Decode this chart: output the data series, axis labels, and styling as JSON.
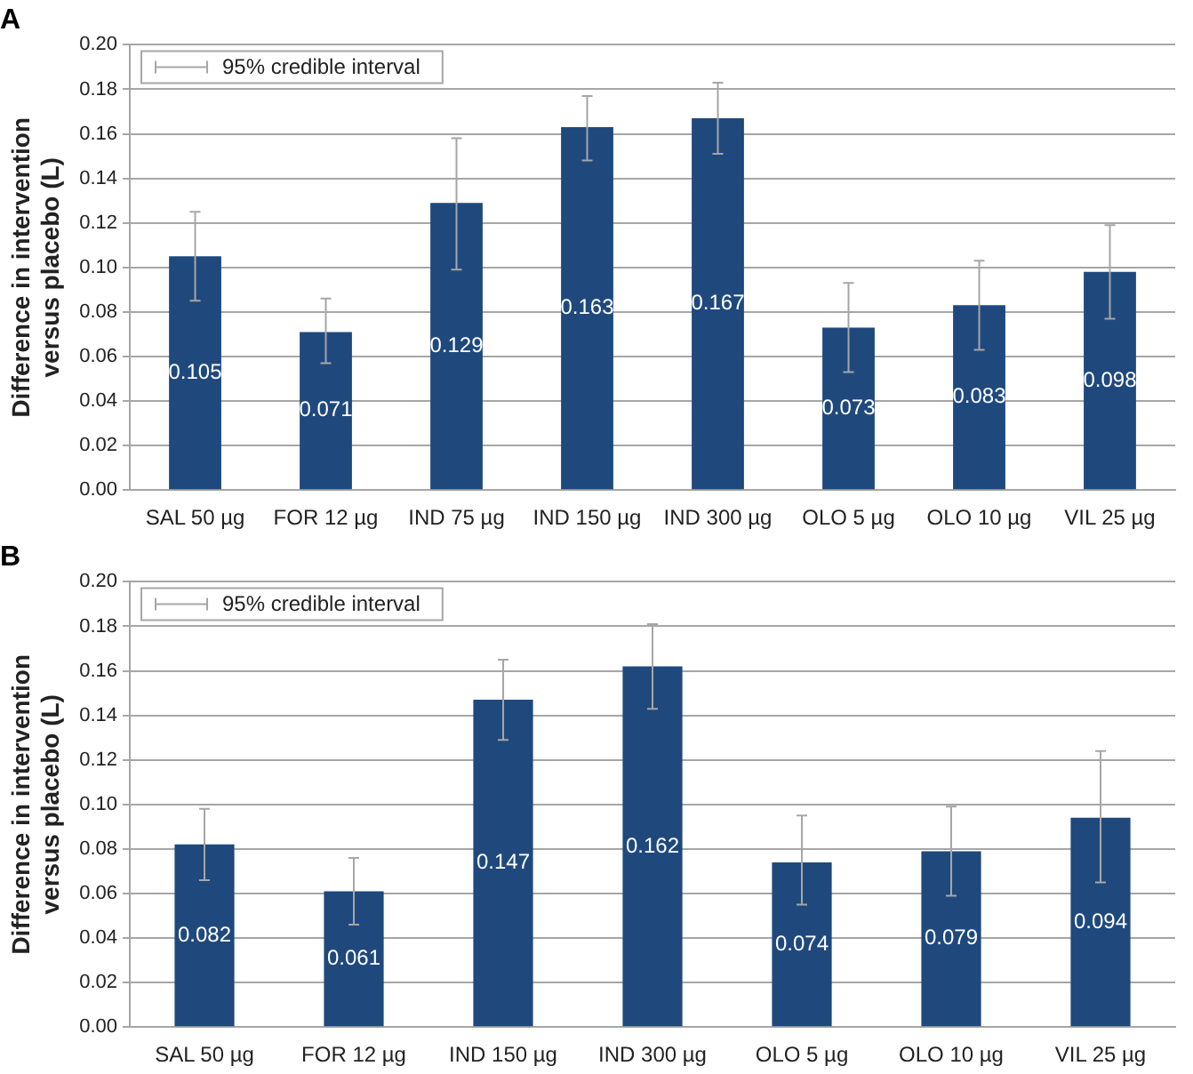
{
  "chart_data": [
    {
      "type": "bar",
      "title": "A",
      "ylabel": "Difference in intervention versus placebo (L)",
      "categories": [
        "SAL 50 µg",
        "FOR 12 µg",
        "IND 75 µg",
        "IND 150 µg",
        "IND 300 µg",
        "OLO 5 µg",
        "OLO 10 µg",
        "VIL 25 µg"
      ],
      "values": [
        0.105,
        0.071,
        0.129,
        0.163,
        0.167,
        0.073,
        0.083,
        0.098
      ],
      "color": "#1f497d",
      "errors": [
        [
          0.085,
          0.125
        ],
        [
          0.057,
          0.086
        ],
        [
          0.099,
          0.158
        ],
        [
          0.148,
          0.177
        ],
        [
          0.151,
          0.183
        ],
        [
          0.053,
          0.093
        ],
        [
          0.063,
          0.103
        ],
        [
          0.077,
          0.119
        ]
      ],
      "ylim": [
        0,
        0.2
      ],
      "yticks": [
        {
          "value": 0,
          "label": "0.00"
        },
        {
          "value": 0.02,
          "label": "0.02"
        },
        {
          "value": 0.04,
          "label": "0.04"
        },
        {
          "value": 0.06,
          "label": "0.06"
        },
        {
          "value": 0.08,
          "label": "0.08"
        },
        {
          "value": 0.1,
          "label": "0.10"
        },
        {
          "value": 0.12,
          "label": "0.12"
        },
        {
          "value": 0.14,
          "label": "0.14"
        },
        {
          "value": 0.16,
          "label": "0.16"
        },
        {
          "value": 0.18,
          "label": "0.18"
        },
        {
          "value": 0.2,
          "label": "0.20"
        }
      ],
      "grid": "y",
      "data_labels": true,
      "annotations": [
        "95% credible interval"
      ]
    },
    {
      "type": "bar",
      "title": "B",
      "ylabel": "Difference in intervention versus placebo (L)",
      "categories": [
        "SAL 50 µg",
        "FOR 12 µg",
        "IND 150 µg",
        "IND 300 µg",
        "OLO 5 µg",
        "OLO 10 µg",
        "VIL 25 µg"
      ],
      "values": [
        0.082,
        0.061,
        0.147,
        0.162,
        0.074,
        0.079,
        0.094
      ],
      "color": "#1f497d",
      "errors": [
        [
          0.066,
          0.098
        ],
        [
          0.046,
          0.076
        ],
        [
          0.129,
          0.165
        ],
        [
          0.143,
          0.181
        ],
        [
          0.055,
          0.095
        ],
        [
          0.059,
          0.099
        ],
        [
          0.065,
          0.124
        ]
      ],
      "ylim": [
        0,
        0.2
      ],
      "yticks": [
        {
          "value": 0,
          "label": "0.00"
        },
        {
          "value": 0.02,
          "label": "0.02"
        },
        {
          "value": 0.04,
          "label": "0.04"
        },
        {
          "value": 0.06,
          "label": "0.06"
        },
        {
          "value": 0.08,
          "label": "0.08"
        },
        {
          "value": 0.1,
          "label": "0.10"
        },
        {
          "value": 0.12,
          "label": "0.12"
        },
        {
          "value": 0.14,
          "label": "0.14"
        },
        {
          "value": 0.16,
          "label": "0.16"
        },
        {
          "value": 0.18,
          "label": "0.18"
        },
        {
          "value": 0.2,
          "label": "0.20"
        }
      ],
      "grid": "y",
      "data_labels": true,
      "annotations": [
        "95% credible interval"
      ]
    }
  ]
}
